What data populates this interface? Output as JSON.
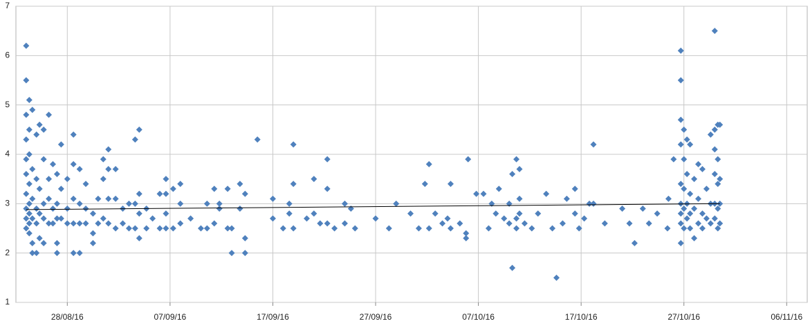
{
  "chart_data": {
    "type": "scatter",
    "xlim": [
      42605,
      42682
    ],
    "ylim": [
      1,
      7
    ],
    "xticks": [
      {
        "value": 42610,
        "label": "28/08/16"
      },
      {
        "value": 42620,
        "label": "07/09/16"
      },
      {
        "value": 42630,
        "label": "17/09/16"
      },
      {
        "value": 42640,
        "label": "27/09/16"
      },
      {
        "value": 42650,
        "label": "07/10/16"
      },
      {
        "value": 42660,
        "label": "17/10/16"
      },
      {
        "value": 42670,
        "label": "27/10/16"
      },
      {
        "value": 42680,
        "label": "06/11/16"
      }
    ],
    "yticks": [
      1,
      2,
      3,
      4,
      5,
      6,
      7
    ],
    "grid": true,
    "series": [
      {
        "color": "#4f81bd",
        "x": [
          42606.0,
          42606.0,
          42606.0,
          42606.0,
          42606.0,
          42606.0,
          42606.0,
          42606.0,
          42606.0,
          42606.0,
          42606.3,
          42606.3,
          42606.3,
          42606.3,
          42606.3,
          42606.3,
          42606.3,
          42606.3,
          42606.6,
          42606.6,
          42606.6,
          42606.6,
          42606.6,
          42606.6,
          42607.0,
          42607.0,
          42607.0,
          42607.0,
          42607.0,
          42607.3,
          42607.3,
          42607.3,
          42607.3,
          42607.7,
          42607.7,
          42607.7,
          42607.7,
          42607.7,
          42608.2,
          42608.2,
          42608.2,
          42608.2,
          42608.6,
          42608.6,
          42608.6,
          42609.0,
          42609.0,
          42609.0,
          42609.0,
          42609.0,
          42609.4,
          42609.4,
          42609.4,
          42610.0,
          42610.0,
          42610.0,
          42610.6,
          42610.6,
          42610.6,
          42610.6,
          42610.6,
          42611.2,
          42611.2,
          42611.2,
          42611.2,
          42611.8,
          42611.8,
          42611.8,
          42612.5,
          42612.5,
          42612.5,
          42613.0,
          42613.0,
          42613.5,
          42613.5,
          42613.5,
          42614.0,
          42614.0,
          42614.0,
          42614.0,
          42614.7,
          42614.7,
          42614.7,
          42615.4,
          42615.4,
          42616.0,
          42616.0,
          42616.6,
          42616.6,
          42616.6,
          42617.0,
          42617.0,
          42617.0,
          42617.0,
          42617.7,
          42617.7,
          42618.3,
          42619.0,
          42619.0,
          42619.6,
          42619.6,
          42619.6,
          42619.6,
          42620.3,
          42620.3,
          42621.0,
          42621.0,
          42621.0,
          42622.0,
          42623.0,
          42623.6,
          42623.6,
          42624.3,
          42624.3,
          42624.8,
          42624.8,
          42625.6,
          42625.6,
          42626.0,
          42626.0,
          42626.8,
          42626.8,
          42627.3,
          42627.3,
          42627.3,
          42628.5,
          42630.0,
          42630.0,
          42631.0,
          42631.6,
          42631.6,
          42632.0,
          42632.0,
          42632.0,
          42633.3,
          42634.0,
          42634.0,
          42634.6,
          42635.3,
          42635.3,
          42635.3,
          42636.0,
          42637.0,
          42637.0,
          42637.6,
          42638.0,
          42640.0,
          42641.3,
          42642.0,
          42643.4,
          42644.2,
          42644.8,
          42645.2,
          42645.2,
          42645.8,
          42646.5,
          42647.0,
          42647.3,
          42647.3,
          42648.2,
          42648.8,
          42648.8,
          42649.0,
          42649.8,
          42650.5,
          42651.0,
          42651.3,
          42651.7,
          42652.0,
          42652.5,
          42653.0,
          42653.0,
          42653.3,
          42653.3,
          42653.7,
          42653.7,
          42653.7,
          42654.0,
          42654.0,
          42654.0,
          42654.5,
          42655.2,
          42655.8,
          42656.6,
          42657.2,
          42657.6,
          42658.2,
          42658.6,
          42659.4,
          42659.4,
          42659.8,
          42660.3,
          42660.8,
          42661.2,
          42661.2,
          42662.3,
          42664.0,
          42664.7,
          42665.2,
          42666.0,
          42666.6,
          42667.4,
          42668.4,
          42668.5,
          42669.0,
          42669.7,
          42669.7,
          42669.7,
          42669.7,
          42669.7,
          42669.7,
          42669.7,
          42669.7,
          42669.7,
          42670.0,
          42670.0,
          42670.0,
          42670.0,
          42670.0,
          42670.3,
          42670.3,
          42670.3,
          42670.3,
          42670.6,
          42670.6,
          42670.6,
          42670.6,
          42671.0,
          42671.0,
          42671.0,
          42671.4,
          42671.4,
          42671.4,
          42671.8,
          42671.8,
          42671.8,
          42672.2,
          42672.2,
          42672.6,
          42672.6,
          42672.6,
          42673.0,
          42673.0,
          42673.0,
          42673.0,
          42673.0,
          42673.0,
          42673.3,
          42673.3,
          42673.3,
          42673.3,
          42673.3,
          42673.5,
          42673.5,
          42673.5,
          42673.5
        ],
        "values": [
          6.2,
          5.5,
          4.8,
          4.3,
          3.9,
          3.6,
          3.2,
          2.9,
          2.7,
          2.5,
          5.1,
          4.5,
          4.0,
          3.4,
          3.0,
          2.8,
          2.6,
          2.4,
          4.9,
          3.7,
          3.1,
          2.7,
          2.2,
          2.0,
          4.4,
          3.5,
          2.9,
          2.6,
          2.0,
          4.6,
          3.3,
          2.8,
          2.3,
          4.5,
          3.9,
          3.0,
          2.7,
          2.2,
          4.8,
          3.5,
          3.1,
          2.6,
          3.8,
          2.9,
          2.6,
          3.6,
          3.0,
          2.7,
          2.2,
          2.0,
          4.2,
          3.3,
          2.7,
          3.5,
          2.9,
          2.6,
          4.4,
          3.8,
          3.1,
          2.6,
          2.0,
          3.7,
          3.0,
          2.6,
          2.0,
          3.4,
          2.9,
          2.6,
          2.8,
          2.4,
          2.2,
          3.1,
          2.6,
          3.9,
          3.5,
          2.7,
          4.1,
          3.7,
          3.1,
          2.6,
          3.7,
          3.1,
          2.5,
          2.9,
          2.6,
          3.0,
          2.5,
          4.3,
          3.0,
          2.5,
          4.5,
          3.2,
          2.8,
          2.3,
          2.9,
          2.5,
          2.7,
          3.2,
          2.5,
          3.5,
          3.2,
          2.8,
          2.5,
          3.3,
          2.5,
          3.4,
          3.0,
          2.6,
          2.7,
          2.5,
          3.0,
          2.5,
          3.3,
          2.6,
          3.0,
          2.9,
          3.3,
          2.5,
          2.5,
          2.0,
          3.4,
          2.9,
          3.2,
          2.3,
          2.0,
          4.3,
          3.1,
          2.7,
          2.5,
          2.8,
          3.0,
          4.2,
          3.4,
          2.5,
          2.7,
          3.5,
          2.8,
          2.6,
          3.9,
          3.3,
          2.6,
          2.5,
          3.0,
          2.6,
          2.9,
          2.5,
          2.7,
          2.5,
          3.0,
          2.8,
          2.5,
          3.4,
          3.8,
          2.5,
          2.8,
          2.6,
          2.7,
          3.4,
          2.5,
          2.6,
          2.3,
          2.4,
          3.9,
          3.2,
          3.2,
          2.5,
          3.0,
          2.8,
          3.3,
          2.7,
          3.0,
          2.6,
          3.6,
          1.7,
          3.9,
          2.7,
          2.5,
          3.7,
          3.1,
          2.8,
          2.6,
          2.5,
          2.8,
          3.2,
          2.5,
          1.5,
          2.6,
          3.1,
          3.3,
          2.8,
          2.5,
          2.7,
          3.0,
          4.2,
          3.0,
          2.6,
          2.9,
          2.6,
          2.2,
          2.9,
          2.6,
          2.8,
          2.5,
          3.1,
          3.9,
          6.1,
          5.5,
          4.7,
          4.2,
          3.4,
          3.0,
          2.8,
          2.6,
          2.2,
          4.5,
          3.9,
          3.3,
          2.9,
          2.5,
          4.3,
          3.6,
          3.0,
          2.7,
          4.2,
          3.2,
          2.8,
          2.5,
          3.5,
          2.9,
          2.3,
          3.8,
          3.1,
          2.6,
          3.7,
          2.8,
          2.5,
          3.3,
          2.7,
          4.4,
          3.0,
          2.6,
          6.5,
          4.5,
          4.1,
          3.6,
          3.0,
          2.7,
          4.6,
          3.9,
          3.4,
          2.9,
          2.5,
          4.6,
          3.5,
          3.0,
          2.6
        ]
      }
    ],
    "trendline": {
      "color": "#000000",
      "x": [
        42606,
        42673.5
      ],
      "values": [
        2.88,
        3.0
      ]
    }
  }
}
